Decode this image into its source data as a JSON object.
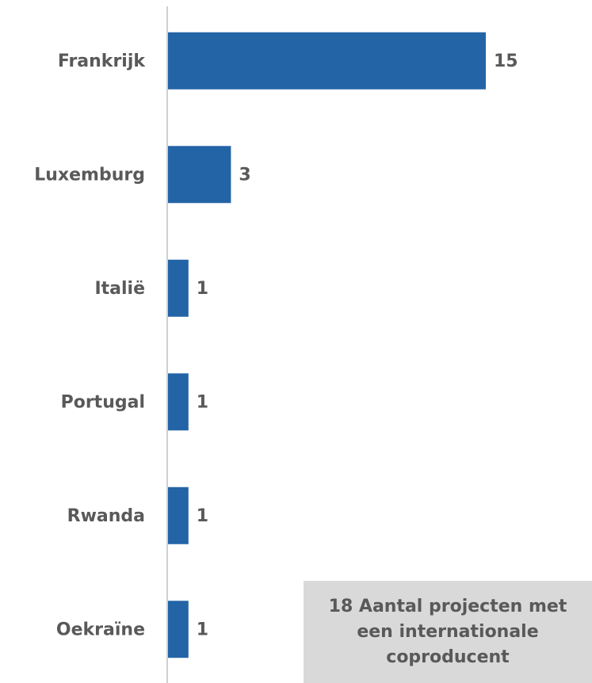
{
  "chart_data": {
    "type": "bar",
    "orientation": "horizontal",
    "categories": [
      "Frankrijk",
      "Luxemburg",
      "Italië",
      "Portugal",
      "Rwanda",
      "Oekraïne"
    ],
    "values": [
      15,
      3,
      1,
      1,
      1,
      1
    ],
    "color": "#2364a6",
    "annotation": "18 Aantal projecten met een internationale coproducent"
  }
}
